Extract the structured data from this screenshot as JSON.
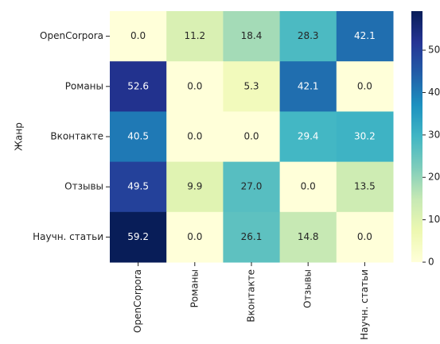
{
  "chart_data": {
    "type": "heatmap",
    "y_label": "Жанр",
    "rows": [
      "OpenCorpora",
      "Романы",
      "Вконтакте",
      "Отзывы",
      "Научн. статьи"
    ],
    "columns": [
      "OpenCorpora",
      "Романы",
      "Вконтакте",
      "Отзывы",
      "Научн. статьи"
    ],
    "values": [
      [
        0,
        11.2,
        18.4,
        28.3,
        42.1
      ],
      [
        52.6,
        0,
        5.3,
        42.1,
        0
      ],
      [
        40.5,
        0,
        0,
        29.4,
        30.2
      ],
      [
        49.5,
        9.9,
        27,
        0,
        13.5
      ],
      [
        59.2,
        0,
        26.1,
        14.8,
        0
      ]
    ],
    "value_labels": [
      [
        "0.0",
        "11.2",
        "18.4",
        "28.3",
        "42.1"
      ],
      [
        "52.6",
        "0.0",
        "5.3",
        "42.1",
        "0.0"
      ],
      [
        "40.5",
        "0.0",
        "0.0",
        "29.4",
        "30.2"
      ],
      [
        "49.5",
        "9.9",
        "27.0",
        "0.0",
        "13.5"
      ],
      [
        "59.2",
        "0.0",
        "26.1",
        "14.8",
        "0.0"
      ]
    ],
    "colormap": [
      "#ffffd9",
      "#edf8b1",
      "#c7e9b4",
      "#7fcdbb",
      "#41b6c4",
      "#1d91c0",
      "#225ea8",
      "#253494",
      "#081d58"
    ],
    "clim": [
      0,
      59.2
    ],
    "cticks": [
      0,
      10,
      20,
      30,
      40,
      50
    ]
  }
}
